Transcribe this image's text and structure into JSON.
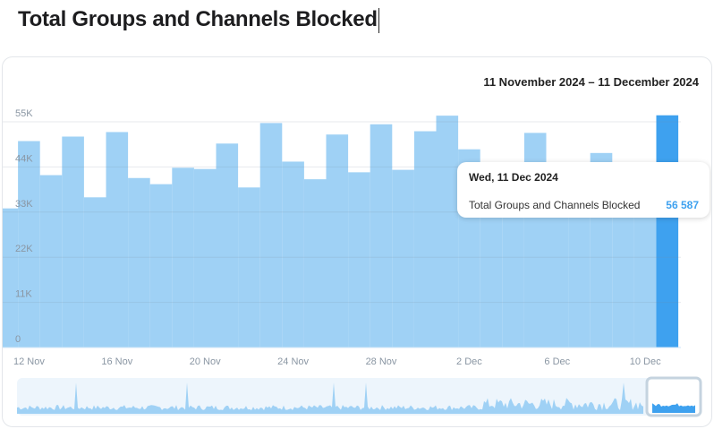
{
  "header": {
    "title": "Total Groups and Channels Blocked"
  },
  "colors": {
    "bar": "#9fd1f5",
    "bar_active": "#3ea1ef",
    "grid": "#e6e9ee",
    "axis_text": "#8a96a3",
    "navigator_bg": "#edf5fc"
  },
  "chart_data": {
    "type": "bar",
    "title": "Total Groups and Channels Blocked",
    "date_range": "11 November 2024 – 11 December 2024",
    "series_name": "Total Groups and Channels Blocked",
    "categories": [
      "11 Nov",
      "12 Nov",
      "13 Nov",
      "14 Nov",
      "15 Nov",
      "16 Nov",
      "17 Nov",
      "18 Nov",
      "19 Nov",
      "20 Nov",
      "21 Nov",
      "22 Nov",
      "23 Nov",
      "24 Nov",
      "25 Nov",
      "26 Nov",
      "27 Nov",
      "28 Nov",
      "29 Nov",
      "30 Nov",
      "1 Dec",
      "2 Dec",
      "3 Dec",
      "4 Dec",
      "5 Dec",
      "6 Dec",
      "7 Dec",
      "8 Dec",
      "9 Dec",
      "10 Dec",
      "11 Dec"
    ],
    "values": [
      33900,
      50300,
      42000,
      51400,
      36600,
      52500,
      41300,
      39800,
      43800,
      43500,
      49700,
      39000,
      54700,
      45300,
      41000,
      51900,
      42700,
      54400,
      43300,
      52700,
      56500,
      48300,
      43000,
      44000,
      52300,
      42000,
      44000,
      47400,
      41000,
      43000,
      56587
    ],
    "active_index": 30,
    "ylim": [
      0,
      55000
    ],
    "yticks": [
      "0",
      "11K",
      "22K",
      "33K",
      "44K",
      "55K"
    ],
    "xtick_labels": [
      "12 Nov",
      "16 Nov",
      "20 Nov",
      "24 Nov",
      "28 Nov",
      "2 Dec",
      "6 Dec",
      "10 Dec"
    ],
    "grid": true,
    "tooltip": {
      "date": "Wed, 11 Dec 2024",
      "label": "Total Groups and Channels Blocked",
      "value": "56 587"
    }
  }
}
